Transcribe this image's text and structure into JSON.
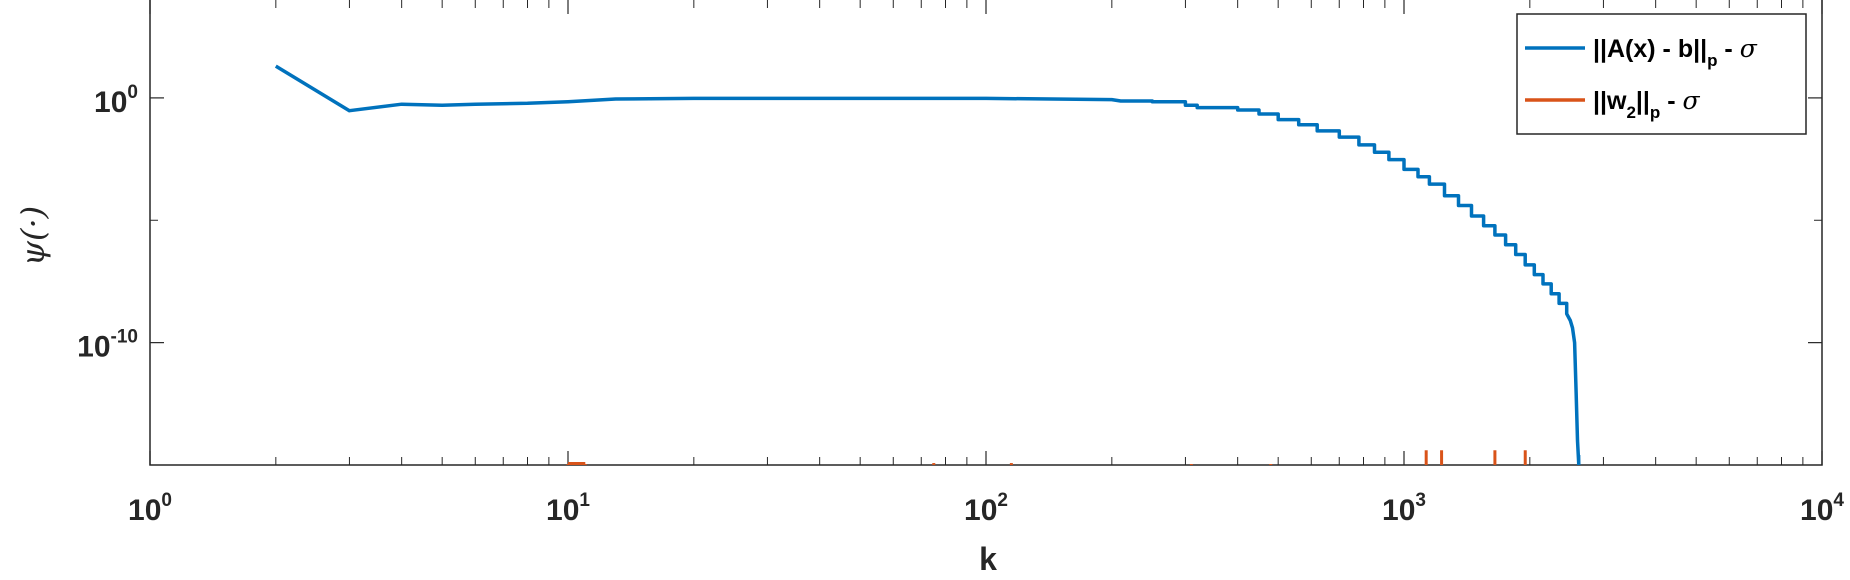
{
  "chart_data": {
    "type": "line",
    "xscale": "log",
    "yscale": "log",
    "xlim": [
      1,
      10000
    ],
    "ylim": [
      1e-15,
      10000.0
    ],
    "xlabel": "k",
    "ylabel": "ψ(·)",
    "title": "",
    "grid": false,
    "legend_position": "top-right",
    "x_ticks": [
      {
        "base": "10",
        "exp": "0",
        "value": 1
      },
      {
        "base": "10",
        "exp": "1",
        "value": 10
      },
      {
        "base": "10",
        "exp": "2",
        "value": 100
      },
      {
        "base": "10",
        "exp": "3",
        "value": 1000
      },
      {
        "base": "10",
        "exp": "4",
        "value": 10000
      }
    ],
    "y_ticks": [
      {
        "base": "10",
        "exp": "-10",
        "value": 1e-10
      },
      {
        "base": "10",
        "exp": "0",
        "value": 1
      }
    ],
    "series": [
      {
        "legend_main": "||A(x) - b||",
        "legend_sub": "p",
        "legend_tail": " - ",
        "legend_sigma": "σ",
        "color": "#0072BD",
        "x": [
          2,
          3,
          4,
          5,
          6,
          8,
          10,
          13,
          20,
          50,
          100,
          200,
          210,
          250,
          300,
          320,
          400,
          450,
          500,
          560,
          620,
          700,
          780,
          850,
          920,
          1000,
          1080,
          1150,
          1250,
          1350,
          1450,
          1550,
          1650,
          1750,
          1850,
          1950,
          2050,
          2150,
          2250,
          2350,
          2450,
          2500,
          2530,
          2560,
          2580,
          2600,
          2620
        ],
        "y": [
          20,
          0.3,
          0.55,
          0.5,
          0.55,
          0.6,
          0.7,
          0.9,
          0.95,
          0.95,
          0.95,
          0.85,
          0.75,
          0.7,
          0.5,
          0.4,
          0.32,
          0.22,
          0.13,
          0.08,
          0.045,
          0.025,
          0.012,
          0.006,
          0.003,
          0.0012,
          0.0006,
          0.0003,
          0.0001,
          4e-05,
          1.5e-05,
          6e-06,
          2.5e-06,
          1e-06,
          4e-07,
          1.5e-07,
          6e-08,
          2.5e-08,
          1e-08,
          4e-09,
          1.5e-09,
          8e-10,
          4e-10,
          1e-10,
          1e-12,
          1e-14,
          1e-15
        ]
      },
      {
        "legend_main": "||w",
        "legend_sub": "2",
        "legend_mid": "||",
        "legend_sub2": "p",
        "legend_tail": " - ",
        "legend_sigma": "σ",
        "color": "#D95319",
        "spikes": [
          10,
          11,
          75,
          115,
          310,
          480,
          1130,
          1230,
          1650,
          1950
        ],
        "spike_top": [
          1.1e-15,
          1.1e-15,
          1.2e-15,
          1.2e-15,
          1.1e-15,
          1.1e-15,
          4e-15,
          4e-15,
          4e-15,
          4e-15
        ]
      }
    ]
  }
}
